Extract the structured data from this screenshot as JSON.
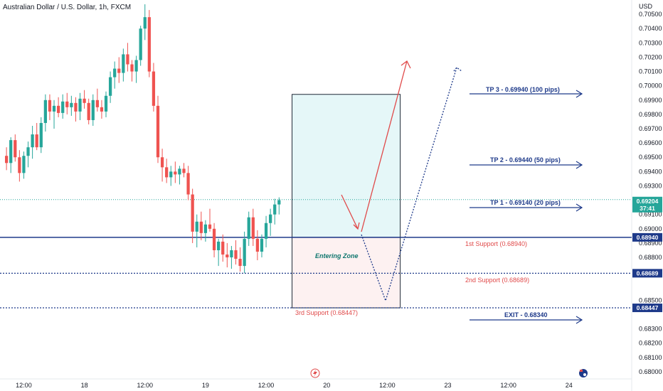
{
  "header": {
    "symbol": "Australian Dollar / U.S. Dollar, 1h, FXCM"
  },
  "colors": {
    "up": "#26a69a",
    "down": "#ef5350",
    "blue": "#1e3a8a",
    "red": "#e04a4a",
    "teal": "#0f766e"
  },
  "chart_data": {
    "type": "candlestick",
    "title": "Australian Dollar / U.S. Dollar, 1h, FXCM",
    "currency": "USD",
    "ylim": [
      0.6795,
      0.706
    ],
    "y_ticks": [
      "0.70500",
      "0.70400",
      "0.70300",
      "0.70200",
      "0.70100",
      "0.70000",
      "0.69900",
      "0.69800",
      "0.69700",
      "0.69600",
      "0.69500",
      "0.69400",
      "0.69300",
      "0.69100",
      "0.69000",
      "0.68900",
      "0.68800",
      "0.68700",
      "0.68500",
      "0.68300",
      "0.68200",
      "0.68100",
      "0.68000"
    ],
    "x_ticks": [
      "12:00",
      "18",
      "12:00",
      "19",
      "12:00",
      "20",
      "12:00",
      "23",
      "12:00",
      "24"
    ],
    "x_tick_slots": [
      5,
      19,
      33,
      47,
      61,
      75,
      89,
      103,
      117,
      131
    ],
    "slot_count": 146,
    "current_price": "0.69204",
    "countdown": "37:41",
    "candles": [
      [
        0.6951,
        0.6957,
        0.6941,
        0.6946
      ],
      [
        0.6946,
        0.6964,
        0.6939,
        0.6962
      ],
      [
        0.6962,
        0.6966,
        0.6947,
        0.695
      ],
      [
        0.695,
        0.6955,
        0.6933,
        0.6939
      ],
      [
        0.6939,
        0.6954,
        0.6935,
        0.6951
      ],
      [
        0.6951,
        0.6961,
        0.6943,
        0.6957
      ],
      [
        0.6957,
        0.6972,
        0.6949,
        0.6966
      ],
      [
        0.6966,
        0.6974,
        0.6955,
        0.6957
      ],
      [
        0.6957,
        0.6978,
        0.6953,
        0.6974
      ],
      [
        0.6974,
        0.6994,
        0.6968,
        0.699
      ],
      [
        0.699,
        0.6994,
        0.6976,
        0.6982
      ],
      [
        0.6982,
        0.699,
        0.697,
        0.6986
      ],
      [
        0.6986,
        0.6992,
        0.6978,
        0.6981
      ],
      [
        0.6981,
        0.6994,
        0.6977,
        0.6989
      ],
      [
        0.6989,
        0.6995,
        0.698,
        0.6985
      ],
      [
        0.6985,
        0.6993,
        0.6979,
        0.6988
      ],
      [
        0.6988,
        0.6992,
        0.6975,
        0.6982
      ],
      [
        0.6982,
        0.6995,
        0.6976,
        0.6991
      ],
      [
        0.6991,
        0.6997,
        0.6984,
        0.6988
      ],
      [
        0.6988,
        0.6991,
        0.6973,
        0.6976
      ],
      [
        0.6976,
        0.6994,
        0.6972,
        0.699
      ],
      [
        0.699,
        0.6998,
        0.6982,
        0.6985
      ],
      [
        0.6985,
        0.699,
        0.6977,
        0.6982
      ],
      [
        0.6982,
        0.6996,
        0.6978,
        0.6993
      ],
      [
        0.6993,
        0.701,
        0.6988,
        0.7006
      ],
      [
        0.7006,
        0.7017,
        0.6998,
        0.7012
      ],
      [
        0.7012,
        0.702,
        0.7002,
        0.7009
      ],
      [
        0.7009,
        0.7026,
        0.7003,
        0.7022
      ],
      [
        0.7022,
        0.703,
        0.701,
        0.7015
      ],
      [
        0.7015,
        0.7018,
        0.7003,
        0.701
      ],
      [
        0.701,
        0.7021,
        0.7002,
        0.7018
      ],
      [
        0.7018,
        0.7042,
        0.7014,
        0.704
      ],
      [
        0.704,
        0.7057,
        0.7032,
        0.7048
      ],
      [
        0.7048,
        0.7053,
        0.7006,
        0.701
      ],
      [
        0.701,
        0.7016,
        0.6982,
        0.6986
      ],
      [
        0.6986,
        0.6993,
        0.6946,
        0.695
      ],
      [
        0.695,
        0.6956,
        0.6933,
        0.6943
      ],
      [
        0.6943,
        0.6949,
        0.6932,
        0.6936
      ],
      [
        0.6936,
        0.6944,
        0.693,
        0.694
      ],
      [
        0.694,
        0.6947,
        0.6932,
        0.6938
      ],
      [
        0.6938,
        0.6944,
        0.6931,
        0.6942
      ],
      [
        0.6942,
        0.6946,
        0.6936,
        0.6939
      ],
      [
        0.6939,
        0.6944,
        0.692,
        0.6924
      ],
      [
        0.6924,
        0.6928,
        0.689,
        0.6898
      ],
      [
        0.6898,
        0.691,
        0.6887,
        0.6905
      ],
      [
        0.6905,
        0.6912,
        0.6892,
        0.6897
      ],
      [
        0.6897,
        0.6906,
        0.6891,
        0.6903
      ],
      [
        0.6903,
        0.6914,
        0.6898,
        0.69
      ],
      [
        0.69,
        0.6904,
        0.688,
        0.6885
      ],
      [
        0.6885,
        0.6893,
        0.6874,
        0.6891
      ],
      [
        0.6891,
        0.6896,
        0.6877,
        0.6882
      ],
      [
        0.6882,
        0.689,
        0.6873,
        0.688
      ],
      [
        0.688,
        0.6888,
        0.6872,
        0.6885
      ],
      [
        0.6885,
        0.6892,
        0.6875,
        0.6879
      ],
      [
        0.6879,
        0.6887,
        0.687,
        0.6874
      ],
      [
        0.6874,
        0.6898,
        0.6869,
        0.6893
      ],
      [
        0.6893,
        0.6912,
        0.6888,
        0.6908
      ],
      [
        0.6908,
        0.6914,
        0.6888,
        0.6893
      ],
      [
        0.6893,
        0.6899,
        0.6878,
        0.6884
      ],
      [
        0.6884,
        0.6896,
        0.688,
        0.6893
      ],
      [
        0.6893,
        0.6909,
        0.6887,
        0.6904
      ],
      [
        0.6904,
        0.6914,
        0.6895,
        0.691
      ],
      [
        0.691,
        0.6921,
        0.6903,
        0.6917
      ],
      [
        0.6917,
        0.6922,
        0.691,
        0.692
      ]
    ],
    "levels": [
      {
        "price": 0.6894,
        "tag": "0.68940",
        "color": "#1e3a8a",
        "style": "solid"
      },
      {
        "price": 0.68689,
        "tag": "0.68689",
        "color": "#1e3a8a",
        "style": "dotted"
      },
      {
        "price": 0.68447,
        "tag": "0.68447",
        "color": "#1e3a8a",
        "style": "dotted"
      }
    ],
    "annotations": {
      "tp3": "TP 3 - 0.69940 (100 pips)",
      "tp2": "TP 2 - 0.69440 (50 pips)",
      "tp1": "TP 1 - 0.69140 (20 pips)",
      "support1": "1st Support (0.68940)",
      "support2": "2nd Support (0.68689)",
      "support3": "3rd Support (0.68447)",
      "exit": "EXIT - 0.68340",
      "entering_zone": "Entering Zone"
    },
    "target_box": {
      "from_slot": 67,
      "to_slot": 92,
      "top": 0.6994,
      "bottom": 0.6894
    },
    "stop_box": {
      "from_slot": 67,
      "to_slot": 92,
      "top": 0.6894,
      "bottom": 0.68447
    }
  }
}
